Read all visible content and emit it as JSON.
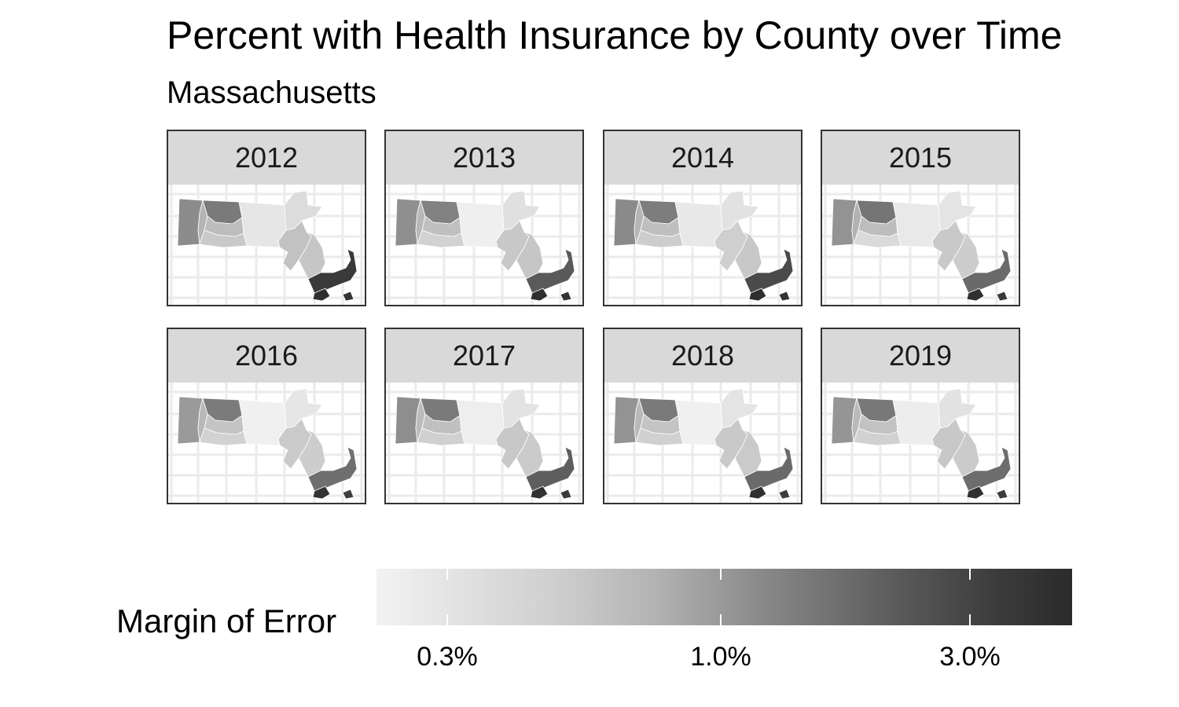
{
  "title": "Percent with Health Insurance by County over Time",
  "subtitle": "Massachusetts",
  "panels": [
    {
      "year": "2012",
      "shades": [
        "#8c8c8c",
        "#b5b5b5",
        "#7a7a7a",
        "#bdbdbd",
        "#c9c9c9",
        "#e6e6e6",
        "#dcdcdc",
        "#c2c2c2",
        "#c6c6c6",
        "#3a3a3a",
        "#2e2e2e",
        "#333333"
      ]
    },
    {
      "year": "2013",
      "shades": [
        "#8f8f8f",
        "#b8b8b8",
        "#828282",
        "#c0c0c0",
        "#d2d2d2",
        "#efefef",
        "#e0e0e0",
        "#c8c8c8",
        "#c6c6c6",
        "#5a5a5a",
        "#2f2f2f",
        "#333333"
      ]
    },
    {
      "year": "2014",
      "shades": [
        "#8a8a8a",
        "#b5b5b5",
        "#7d7d7d",
        "#bfbfbf",
        "#cdcdcd",
        "#e8e8e8",
        "#e2e2e2",
        "#cfcfcf",
        "#c8c8c8",
        "#4a4a4a",
        "#2e2e2e",
        "#333333"
      ]
    },
    {
      "year": "2015",
      "shades": [
        "#939393",
        "#b2b2b2",
        "#757575",
        "#bdbdbd",
        "#dadada",
        "#e9e9e9",
        "#e4e4e4",
        "#c9c9c9",
        "#cdcdcd",
        "#6a6a6a",
        "#2f2f2f",
        "#3a3a3a"
      ]
    },
    {
      "year": "2016",
      "shades": [
        "#9a9a9a",
        "#b8b8b8",
        "#7b7b7b",
        "#c4c4c4",
        "#d2d2d2",
        "#f0f0f0",
        "#e6e6e6",
        "#cacaca",
        "#cdcdcd",
        "#6f6f6f",
        "#333333",
        "#3d3d3d"
      ]
    },
    {
      "year": "2017",
      "shades": [
        "#8e8e8e",
        "#bcbcbc",
        "#7a7a7a",
        "#c0c0c0",
        "#d0d0d0",
        "#eeeeee",
        "#e3e3e3",
        "#c8c8c8",
        "#cbcbcb",
        "#5e5e5e",
        "#313131",
        "#3a3a3a"
      ]
    },
    {
      "year": "2018",
      "shades": [
        "#939393",
        "#b9b9b9",
        "#7a7a7a",
        "#c4c4c4",
        "#d0d0d0",
        "#f0f0f0",
        "#e4e4e4",
        "#c9c9c9",
        "#cacaca",
        "#6a6a6a",
        "#2f2f2f",
        "#3c3c3c"
      ]
    },
    {
      "year": "2019",
      "shades": [
        "#959595",
        "#bababa",
        "#787878",
        "#c2c2c2",
        "#d1d1d1",
        "#ededed",
        "#e2e2e2",
        "#c8c8c8",
        "#cbcbcb",
        "#6d6d6d",
        "#303030",
        "#3b3b3b"
      ]
    }
  ],
  "legend": {
    "title": "Margin of Error",
    "ticks": [
      {
        "label": "0.3%",
        "value": 0.3
      },
      {
        "label": "1.0%",
        "value": 1.0
      },
      {
        "label": "3.0%",
        "value": 3.0
      }
    ],
    "color_low": "#f2f2f2",
    "color_high": "#2b2b2b"
  }
}
